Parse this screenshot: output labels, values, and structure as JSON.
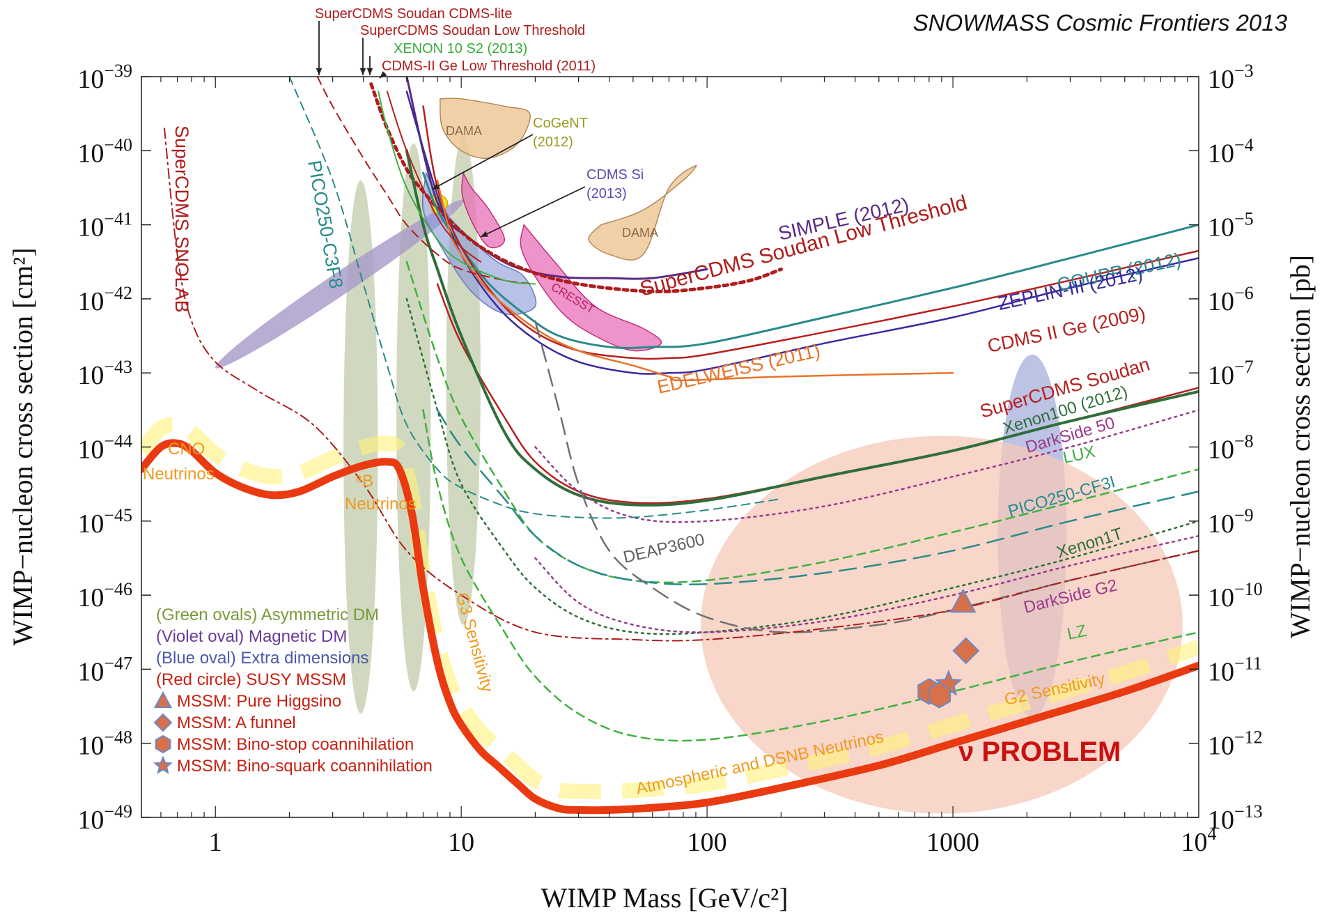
{
  "chart_data": {
    "type": "line",
    "title": "SNOWMASS Cosmic Frontiers 2013",
    "xlabel": "WIMP Mass [GeV/c²]",
    "ylabel": "WIMP−nucleon cross section [cm²]",
    "y2label": "WIMP−nucleon cross section [pb]",
    "x_scale": "log",
    "y_scale": "log",
    "xlim": [
      0.5,
      10000
    ],
    "ylim": [
      1e-49,
      1e-39
    ],
    "x_ticks": [
      {
        "value": 1,
        "label": "1"
      },
      {
        "value": 10,
        "label": "10"
      },
      {
        "value": 100,
        "label": "100"
      },
      {
        "value": 1000,
        "label": "1000"
      },
      {
        "value": 10000,
        "label": "10",
        "sup": "4"
      }
    ],
    "y_ticks": [
      {
        "exp": -39,
        "base": "10",
        "sup": "−39"
      },
      {
        "exp": -40,
        "base": "10",
        "sup": "−40"
      },
      {
        "exp": -41,
        "base": "10",
        "sup": "−41"
      },
      {
        "exp": -42,
        "base": "10",
        "sup": "−42"
      },
      {
        "exp": -43,
        "base": "10",
        "sup": "−43"
      },
      {
        "exp": -44,
        "base": "10",
        "sup": "−44"
      },
      {
        "exp": -45,
        "base": "10",
        "sup": "−45"
      },
      {
        "exp": -46,
        "base": "10",
        "sup": "−46"
      },
      {
        "exp": -47,
        "base": "10",
        "sup": "−47"
      },
      {
        "exp": -48,
        "base": "10",
        "sup": "−48"
      },
      {
        "exp": -49,
        "base": "10",
        "sup": "−49"
      }
    ],
    "y2_ticks": [
      {
        "exp": -39,
        "base": "10",
        "sup": "−3"
      },
      {
        "exp": -40,
        "base": "10",
        "sup": "−4"
      },
      {
        "exp": -41,
        "base": "10",
        "sup": "−5"
      },
      {
        "exp": -42,
        "base": "10",
        "sup": "−6"
      },
      {
        "exp": -43,
        "base": "10",
        "sup": "−7"
      },
      {
        "exp": -44,
        "base": "10",
        "sup": "−8"
      },
      {
        "exp": -45,
        "base": "10",
        "sup": "−9"
      },
      {
        "exp": -46,
        "base": "10",
        "sup": "−10"
      },
      {
        "exp": -47,
        "base": "10",
        "sup": "−11"
      },
      {
        "exp": -48,
        "base": "10",
        "sup": "−12"
      },
      {
        "exp": -49,
        "base": "10",
        "sup": "−13"
      }
    ],
    "grid": false,
    "series": [
      {
        "name": "SIMPLE (2012)",
        "color": "#5a2a82",
        "dash": "solid",
        "width": 3,
        "x": [
          6,
          8,
          11,
          16,
          25,
          40,
          60,
          100
        ],
        "y": [
          -39.0,
          -40.7,
          -41.2,
          -41.55,
          -41.7,
          -41.72,
          -41.72,
          -41.6
        ]
      },
      {
        "name": "SuperCDMS Soudan Low Threshold",
        "color": "#b01c1c",
        "dash": "heavydot",
        "width": 5,
        "x": [
          4.3,
          5,
          6,
          7,
          9,
          12,
          18,
          30,
          60,
          100,
          150,
          200
        ],
        "y": [
          -39.1,
          -39.7,
          -40.25,
          -40.55,
          -40.95,
          -41.3,
          -41.6,
          -41.8,
          -41.9,
          -41.85,
          -41.75,
          -41.6
        ]
      },
      {
        "name": "COUPP (2012)",
        "color": "#2a8a8a",
        "dash": "solid",
        "width": 3,
        "x": [
          7,
          8,
          10,
          13,
          18,
          25,
          40,
          60,
          100,
          300,
          1000,
          3000,
          10000
        ],
        "y": [
          -40.3,
          -40.8,
          -41.3,
          -41.8,
          -42.2,
          -42.5,
          -42.65,
          -42.65,
          -42.6,
          -42.25,
          -41.85,
          -41.45,
          -41.0
        ]
      },
      {
        "name": "ZEPLIN-III (2012)",
        "color": "#3a2aa0",
        "dash": "solid",
        "width": 2.5,
        "x": [
          6,
          8,
          10,
          14,
          20,
          30,
          50,
          70,
          100,
          300,
          1000,
          3000,
          10000
        ],
        "y": [
          -39.2,
          -40.6,
          -41.4,
          -42.1,
          -42.55,
          -42.85,
          -43.0,
          -43.0,
          -42.95,
          -42.6,
          -42.25,
          -41.85,
          -41.45
        ]
      },
      {
        "name": "CDMS II Ge (2009)",
        "color": "#b82020",
        "dash": "solid",
        "width": 2.5,
        "x": [
          7,
          8,
          10,
          14,
          20,
          30,
          50,
          70,
          100,
          300,
          1000,
          3000,
          10000
        ],
        "y": [
          -39.4,
          -40.5,
          -41.3,
          -42.0,
          -42.45,
          -42.7,
          -42.8,
          -42.8,
          -42.75,
          -42.45,
          -42.1,
          -41.75,
          -41.35
        ]
      },
      {
        "name": "EDELWEISS (2011)",
        "color": "#e8742a",
        "dash": "solid",
        "width": 2.5,
        "x": [
          8,
          9,
          10,
          13,
          20,
          30,
          50,
          70,
          80,
          200,
          1000
        ],
        "y": [
          -40.4,
          -41.1,
          -41.4,
          -41.9,
          -42.4,
          -42.7,
          -42.9,
          -43.05,
          -43.1,
          -43.05,
          -43.0
        ]
      },
      {
        "name": "SuperCDMS Soudan",
        "color": "#b82020",
        "dash": "solid",
        "width": 2.5,
        "x": [
          8,
          10,
          15,
          20,
          30,
          50,
          100,
          300,
          1000,
          3000,
          10000
        ],
        "y": [
          -41.8,
          -42.6,
          -43.6,
          -44.2,
          -44.6,
          -44.75,
          -44.7,
          -44.4,
          -44.05,
          -43.65,
          -43.2
        ]
      },
      {
        "name": "Xenon100 (2012)",
        "color": "#2f6e3a",
        "dash": "solid",
        "width": 4,
        "x": [
          6,
          7,
          8,
          10,
          15,
          20,
          30,
          50,
          100,
          300,
          1000,
          3000,
          10000
        ],
        "y": [
          -40.0,
          -41.0,
          -41.6,
          -42.5,
          -43.8,
          -44.3,
          -44.65,
          -44.78,
          -44.72,
          -44.4,
          -44.05,
          -43.65,
          -43.25
        ]
      },
      {
        "name": "DarkSide 50",
        "color": "#9a3a8a",
        "dash": "dotted",
        "width": 2.5,
        "x": [
          20,
          30,
          50,
          100,
          300,
          1000,
          3000,
          10000
        ],
        "y": [
          -44.0,
          -44.6,
          -44.95,
          -45.0,
          -44.8,
          -44.4,
          -44.0,
          -43.5
        ]
      },
      {
        "name": "LUX",
        "color": "#40b040",
        "dash": "dashed",
        "width": 2.5,
        "x": [
          6,
          8,
          10,
          15,
          20,
          30,
          50,
          100,
          300,
          1000,
          3000,
          10000
        ],
        "y": [
          -41.5,
          -42.8,
          -43.6,
          -44.6,
          -45.2,
          -45.6,
          -45.8,
          -45.8,
          -45.55,
          -45.15,
          -44.75,
          -44.3
        ]
      },
      {
        "name": "PICO250-CF3I",
        "color": "#2a8a8a",
        "dash": "longdash",
        "width": 2.5,
        "x": [
          8,
          10,
          15,
          20,
          30,
          50,
          100,
          300,
          1000,
          3000,
          10000
        ],
        "y": [
          -43.5,
          -44.0,
          -44.7,
          -45.2,
          -45.6,
          -45.8,
          -45.85,
          -45.7,
          -45.4,
          -45.0,
          -44.6
        ]
      },
      {
        "name": "Xenon1T",
        "color": "#2f6e3a",
        "dash": "dotted",
        "width": 2.5,
        "x": [
          6,
          8,
          10,
          15,
          20,
          30,
          50,
          100,
          300,
          1000,
          3000,
          10000
        ],
        "y": [
          -42.0,
          -43.5,
          -44.5,
          -45.4,
          -45.9,
          -46.3,
          -46.5,
          -46.5,
          -46.3,
          -45.9,
          -45.5,
          -45.0
        ]
      },
      {
        "name": "DarkSide G2",
        "color": "#9a3a8a",
        "dash": "dotted",
        "width": 2.5,
        "x": [
          20,
          30,
          50,
          100,
          300,
          1000,
          3000,
          10000
        ],
        "y": [
          -45.5,
          -46.1,
          -46.4,
          -46.5,
          -46.35,
          -46.0,
          -45.6,
          -45.2
        ]
      },
      {
        "name": "LZ",
        "color": "#40b040",
        "dash": "dashed",
        "width": 2.5,
        "x": [
          7,
          8,
          10,
          15,
          20,
          30,
          50,
          100,
          300,
          1000,
          3000,
          10000
        ],
        "y": [
          -43.5,
          -44.5,
          -45.5,
          -46.5,
          -47.1,
          -47.6,
          -47.9,
          -47.95,
          -47.7,
          -47.3,
          -46.9,
          -46.5
        ]
      },
      {
        "name": "DEAP3600",
        "color": "#707070",
        "dash": "longdash",
        "width": 2.5,
        "x": [
          20,
          25,
          30,
          40,
          60,
          100,
          200,
          500,
          1000,
          3000,
          10000
        ],
        "y": [
          -42.3,
          -43.5,
          -44.5,
          -45.4,
          -45.9,
          -46.3,
          -46.5,
          -46.4,
          -46.2,
          -45.8,
          -45.4
        ]
      },
      {
        "name": "SuperCDMS SNOLAB",
        "color": "#b01c1c",
        "dash": "dashdot",
        "width": 2,
        "x": [
          0.62,
          0.7,
          0.8,
          1.0,
          1.5,
          2.5,
          4,
          6,
          10,
          20,
          50,
          100,
          300,
          1000,
          3000,
          10000
        ],
        "y": [
          -39.7,
          -41.4,
          -42.3,
          -42.85,
          -43.25,
          -43.7,
          -44.5,
          -45.4,
          -46.0,
          -46.5,
          -46.6,
          -46.6,
          -46.45,
          -46.2,
          -45.8,
          -45.4
        ]
      },
      {
        "name": "PICO250-C3F8",
        "color": "#2a8a8a",
        "dash": "dashed",
        "width": 2,
        "x": [
          2.0,
          3,
          4,
          5,
          6,
          8,
          10,
          15,
          20,
          30,
          50,
          100,
          200
        ],
        "y": [
          -39.0,
          -40.4,
          -41.8,
          -42.9,
          -43.7,
          -44.3,
          -44.55,
          -44.8,
          -44.9,
          -44.95,
          -44.95,
          -44.85,
          -44.7
        ]
      },
      {
        "name": "SuperCDMS Soudan CDMS-lite",
        "color": "#b01c1c",
        "dash": "dashed",
        "width": 2,
        "x": [
          2.6,
          3,
          4,
          5,
          6,
          8,
          10,
          15,
          20
        ],
        "y": [
          -39.0,
          -39.4,
          -40.1,
          -40.6,
          -41.0,
          -41.4,
          -41.6,
          -41.75,
          -41.8
        ]
      },
      {
        "name": "XENON 10 S2 (2013)",
        "color": "#40b040",
        "dash": "solid",
        "width": 2,
        "x": [
          4.6,
          5,
          6,
          8,
          10,
          15,
          20
        ],
        "y": [
          -39.2,
          -39.7,
          -40.5,
          -41.2,
          -41.5,
          -41.75,
          -41.8
        ]
      },
      {
        "name": "CDMS-II Ge Low Threshold (2011)",
        "color": "#b82020",
        "dash": "solid",
        "width": 2,
        "x": [
          5,
          6,
          8,
          10,
          12
        ],
        "y": [
          -39.2,
          -40.0,
          -40.9,
          -41.3,
          -41.5
        ]
      }
    ],
    "neutrino_floor": {
      "name": "ν floor",
      "color": "#ea3a12",
      "x": [
        0.5,
        0.6,
        0.7,
        0.8,
        1.0,
        1.3,
        1.7,
        2.2,
        3.0,
        4.0,
        5.0,
        5.6,
        6.3,
        7.0,
        8.0,
        9.0,
        10,
        12,
        14,
        17,
        20,
        25,
        30,
        40,
        60,
        100,
        200,
        500,
        1000,
        2000,
        5000,
        10000
      ],
      "y": [
        -44.3,
        -44.0,
        -43.95,
        -44.05,
        -44.35,
        -44.55,
        -44.65,
        -44.6,
        -44.4,
        -44.25,
        -44.2,
        -44.3,
        -44.9,
        -45.9,
        -46.9,
        -47.45,
        -47.75,
        -48.1,
        -48.3,
        -48.55,
        -48.75,
        -48.88,
        -48.9,
        -48.9,
        -48.87,
        -48.8,
        -48.6,
        -48.3,
        -48.0,
        -47.7,
        -47.3,
        -46.95
      ]
    },
    "annotations": [
      {
        "text": "SuperCDMS Soudan CDMS-lite",
        "color": "#b01c1c"
      },
      {
        "text": "SuperCDMS Soudan Low Threshold",
        "color": "#b01c1c"
      },
      {
        "text": "XENON 10 S2 (2013)",
        "color": "#3aaa3a"
      },
      {
        "text": "CDMS-II Ge Low Threshold (2011)",
        "color": "#b01c1c"
      },
      {
        "text": "CoGeNT",
        "color": "#9a9a20"
      },
      {
        "text": "(2012)",
        "color": "#9a9a20"
      },
      {
        "text": "CDMS Si",
        "color": "#5a4ab0"
      },
      {
        "text": "(2013)",
        "color": "#5a4ab0"
      },
      {
        "text": "DAMA",
        "color": "#8a6a4a"
      },
      {
        "text": "DAMA",
        "color": "#8a6a4a"
      },
      {
        "text": "CRESST",
        "color": "#c0205a"
      },
      {
        "text": "SIMPLE (2012)",
        "color": "#5a2a82"
      },
      {
        "text": "SuperCDMS Soudan Low Threshold",
        "color": "#b01c1c"
      },
      {
        "text": "COUPP (2012)",
        "color": "#2a8a8a"
      },
      {
        "text": "ZEPLIN-III (2012)",
        "color": "#3a2aa0"
      },
      {
        "text": "CDMS II Ge  (2009)",
        "color": "#b82020"
      },
      {
        "text": "EDELWEISS (2011)",
        "color": "#e8742a"
      },
      {
        "text": "SuperCDMS Soudan",
        "color": "#b82020"
      },
      {
        "text": "Xenon100 (2012)",
        "color": "#2f6e3a"
      },
      {
        "text": "DarkSide 50",
        "color": "#9a3a8a"
      },
      {
        "text": "LUX",
        "color": "#40b040"
      },
      {
        "text": "PICO250-CF3I",
        "color": "#2a8a8a"
      },
      {
        "text": "Xenon1T",
        "color": "#2f6e3a"
      },
      {
        "text": "DarkSide G2",
        "color": "#9a3a8a"
      },
      {
        "text": "LZ",
        "color": "#40b040"
      },
      {
        "text": "DEAP3600",
        "color": "#606060"
      },
      {
        "text": "SuperCDMS SNOLAB",
        "color": "#b01c1c"
      },
      {
        "text": "PICO250-C3F8",
        "color": "#2a8a8a"
      },
      {
        "text": "CNO",
        "color": "#f09a20"
      },
      {
        "text": "Neutrinos",
        "color": "#f09a20"
      },
      {
        "text": "⁸B",
        "color": "#f09a20"
      },
      {
        "text": "Neutrinos",
        "color": "#f09a20"
      },
      {
        "text": "G3 Sensitivity",
        "color": "#f09a20"
      },
      {
        "text": "Atmospheric and DSNB Neutrinos",
        "color": "#f09a20"
      },
      {
        "text": "G2 Sensitivity",
        "color": "#f09a20"
      },
      {
        "text": "ν PROBLEM",
        "color": "#c81010"
      }
    ],
    "legend": {
      "placement": "bottom-left",
      "items": [
        {
          "text": "(Green ovals) Asymmetric DM",
          "color": "#7a9a3a"
        },
        {
          "text": "(Violet oval) Magnetic DM",
          "color": "#6a3a9a"
        },
        {
          "text": "(Blue oval) Extra dimensions",
          "color": "#4a5aaa"
        },
        {
          "text": "(Red circle) SUSY MSSM",
          "color": "#c82010"
        },
        {
          "text": "MSSM: Pure Higgsino",
          "color": "#c82010",
          "marker": "triangle"
        },
        {
          "text": "MSSM: A funnel",
          "color": "#c82010",
          "marker": "diamond"
        },
        {
          "text": "MSSM: Bino-stop coannihilation",
          "color": "#c82010",
          "marker": "hexagon"
        },
        {
          "text": "MSSM: Bino-squark coannihilation",
          "color": "#c82010",
          "marker": "star"
        }
      ]
    },
    "regions": [
      {
        "name": "Asymmetric DM",
        "color": "#c8d2b4",
        "x_center": 3.9,
        "y_center": -44.0,
        "x_half_decades": 0.07,
        "y_half_decades": 3.6
      },
      {
        "name": "Asymmetric DM",
        "color": "#c8d2b4",
        "x_center": 6.4,
        "y_center": -43.6,
        "x_half_decades": 0.07,
        "y_half_decades": 3.7
      },
      {
        "name": "Asymmetric DM",
        "color": "#c8d2b4",
        "x_center": 10.2,
        "y_center": -43.1,
        "x_half_decades": 0.07,
        "y_half_decades": 3.3
      },
      {
        "name": "Extra dimensions",
        "color": "#b0b8e0",
        "x_center": 2100,
        "y_center": -45.2,
        "x_half_decades": 0.14,
        "y_half_decades": 2.45
      },
      {
        "name": "SUSY MSSM",
        "color": "#f5c8b8",
        "x_center": 900,
        "y_center": -46.4,
        "x_half_decades": 0.98,
        "y_half_decades": 2.55
      }
    ],
    "mssm_points": [
      {
        "marker": "triangle",
        "x": 1100,
        "y": -46.1
      },
      {
        "marker": "diamond",
        "x": 1130,
        "y": -46.75
      },
      {
        "marker": "hexagon",
        "x": 800,
        "y": -47.3
      },
      {
        "marker": "star",
        "x": 960,
        "y": -47.2
      },
      {
        "marker": "hexagon",
        "x": 880,
        "y": -47.35
      }
    ]
  }
}
